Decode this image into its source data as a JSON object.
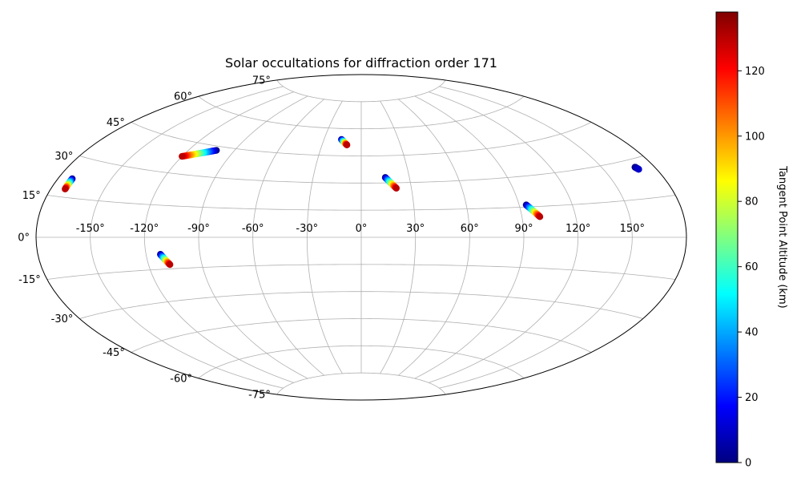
{
  "chart_data": {
    "type": "scatter",
    "title": "Solar occultations for diffraction order 171",
    "projection": "aitoff",
    "grid": true,
    "x_ticks": [
      -150,
      -120,
      -90,
      -60,
      -30,
      0,
      30,
      60,
      90,
      120,
      150
    ],
    "x_tick_labels": [
      "-150°",
      "-120°",
      "-90°",
      "-60°",
      "-30°",
      "0°",
      "30°",
      "60°",
      "90°",
      "120°",
      "150°"
    ],
    "y_ticks": [
      -75,
      -60,
      -45,
      -30,
      -15,
      0,
      15,
      30,
      45,
      60,
      75
    ],
    "y_tick_labels": [
      "-75°",
      "-60°",
      "-45°",
      "-30°",
      "-15°",
      "0°",
      "15°",
      "30°",
      "45°",
      "60°",
      "75°"
    ],
    "colorbar": {
      "label": "Tangent Point Altitude (km)",
      "range": [
        0,
        138
      ],
      "ticks": [
        0,
        20,
        40,
        60,
        80,
        100,
        120
      ],
      "tick_labels": [
        "0",
        "20",
        "40",
        "60",
        "80",
        "100",
        "120"
      ],
      "colormap": "jet"
    },
    "tracks": [
      {
        "lon_start": -172,
        "lat_start": 22,
        "lon_end": -172,
        "lat_end": 18,
        "alt_start": 0,
        "alt_end": 130
      },
      {
        "lon_start": -102,
        "lat_start": 43,
        "lon_end": -120,
        "lat_end": 38,
        "alt_start": 0,
        "alt_end": 130
      },
      {
        "lon_start": -16,
        "lat_start": 54,
        "lon_end": -11,
        "lat_end": 51,
        "alt_start": 0,
        "alt_end": 130
      },
      {
        "lon_start": 15,
        "lat_start": 33,
        "lon_end": 21,
        "lat_end": 27,
        "alt_start": 0,
        "alt_end": 130
      },
      {
        "lon_start": 94,
        "lat_start": 16,
        "lon_end": 100,
        "lat_end": 10,
        "alt_start": 0,
        "alt_end": 130
      },
      {
        "lon_start": 169,
        "lat_start": 27,
        "lon_end": 170,
        "lat_end": 26,
        "alt_start": 0,
        "alt_end": 10
      },
      {
        "lon_start": -112,
        "lat_start": -8,
        "lon_end": -108,
        "lat_end": -13,
        "alt_start": 0,
        "alt_end": 130
      }
    ]
  }
}
